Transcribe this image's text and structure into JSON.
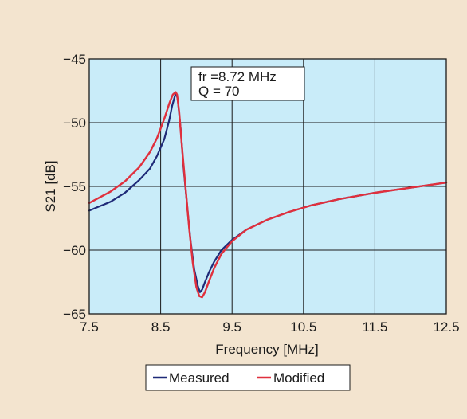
{
  "colors": {
    "background": "#f3e4cf",
    "plot_background": "#c9ecf9",
    "grid": "#1a1a1a",
    "measured": "#1f2a78",
    "modified": "#e0303d"
  },
  "chart_data": {
    "type": "line",
    "title": "",
    "xlabel": "Frequency [MHz]",
    "ylabel": "S21 [dB]",
    "xlim": [
      7.5,
      12.5
    ],
    "ylim": [
      -65,
      -45
    ],
    "xticks": [
      7.5,
      8.5,
      9.5,
      10.5,
      11.5,
      12.5
    ],
    "xtick_labels": [
      "7.5",
      "8.5",
      "9.5",
      "10.5",
      "11.5",
      "12.5"
    ],
    "yticks": [
      -45,
      -50,
      -55,
      -60,
      -65
    ],
    "ytick_labels": [
      "−45",
      "−50",
      "−55",
      "−60",
      "−65"
    ],
    "grid": true,
    "legend_position": "bottom-center",
    "annotation": {
      "line1": "fr =8.72 MHz",
      "line2": "Q = 70"
    },
    "series": [
      {
        "name": "Measured",
        "x": [
          7.5,
          7.8,
          8.0,
          8.2,
          8.35,
          8.45,
          8.55,
          8.62,
          8.66,
          8.7,
          8.72,
          8.74,
          8.78,
          8.82,
          8.87,
          8.92,
          8.97,
          9.02,
          9.05,
          9.08,
          9.12,
          9.18,
          9.25,
          9.35,
          9.5,
          9.7,
          10.0,
          10.3,
          10.6,
          11.0,
          11.5,
          12.0,
          12.5
        ],
        "y": [
          -56.9,
          -56.2,
          -55.5,
          -54.5,
          -53.6,
          -52.6,
          -51.3,
          -49.8,
          -48.7,
          -47.9,
          -47.7,
          -48.2,
          -50.5,
          -53.5,
          -56.5,
          -59.3,
          -61.5,
          -62.8,
          -63.3,
          -63.1,
          -62.5,
          -61.7,
          -60.9,
          -60.0,
          -59.2,
          -58.4,
          -57.6,
          -57.0,
          -56.5,
          -56.0,
          -55.5,
          -55.1,
          -54.7
        ]
      },
      {
        "name": "Modified",
        "x": [
          7.5,
          7.8,
          8.0,
          8.2,
          8.35,
          8.45,
          8.55,
          8.62,
          8.67,
          8.71,
          8.73,
          8.76,
          8.8,
          8.85,
          8.9,
          8.95,
          9.0,
          9.04,
          9.08,
          9.12,
          9.18,
          9.25,
          9.35,
          9.5,
          9.7,
          10.0,
          10.3,
          10.6,
          11.0,
          11.5,
          12.0,
          12.5
        ],
        "y": [
          -56.3,
          -55.4,
          -54.6,
          -53.5,
          -52.3,
          -51.2,
          -49.7,
          -48.5,
          -47.8,
          -47.6,
          -47.8,
          -49.2,
          -52.0,
          -55.2,
          -58.3,
          -61.0,
          -62.9,
          -63.6,
          -63.7,
          -63.3,
          -62.4,
          -61.4,
          -60.3,
          -59.3,
          -58.4,
          -57.6,
          -57.0,
          -56.5,
          -56.0,
          -55.5,
          -55.1,
          -54.7
        ]
      }
    ]
  }
}
